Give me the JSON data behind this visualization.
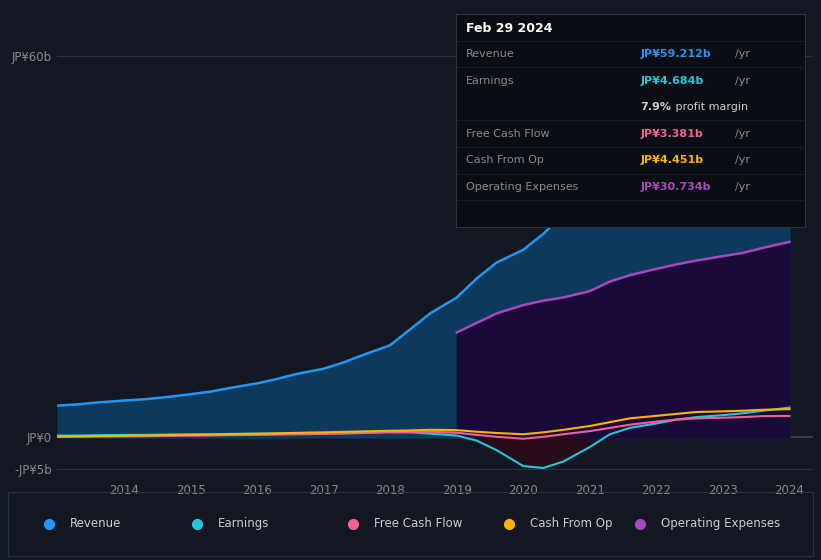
{
  "background_color": "#131722",
  "plot_bg_color": "#131722",
  "years": [
    2013.0,
    2013.3,
    2013.6,
    2014.0,
    2014.3,
    2014.6,
    2015.0,
    2015.3,
    2015.6,
    2016.0,
    2016.3,
    2016.6,
    2017.0,
    2017.3,
    2017.6,
    2018.0,
    2018.3,
    2018.6,
    2019.0,
    2019.3,
    2019.6,
    2020.0,
    2020.3,
    2020.6,
    2021.0,
    2021.3,
    2021.6,
    2022.0,
    2022.3,
    2022.6,
    2023.0,
    2023.3,
    2023.6,
    2024.0
  ],
  "revenue": [
    5.0,
    5.2,
    5.5,
    5.8,
    6.0,
    6.3,
    6.8,
    7.2,
    7.8,
    8.5,
    9.2,
    10.0,
    10.8,
    11.8,
    13.0,
    14.5,
    17.0,
    19.5,
    22.0,
    25.0,
    27.5,
    29.5,
    32.0,
    35.0,
    38.0,
    41.0,
    44.5,
    46.5,
    49.0,
    51.5,
    53.5,
    55.5,
    57.5,
    59.212
  ],
  "earnings": [
    0.3,
    0.3,
    0.35,
    0.4,
    0.4,
    0.45,
    0.5,
    0.5,
    0.55,
    0.6,
    0.6,
    0.65,
    0.7,
    0.75,
    0.8,
    0.85,
    0.8,
    0.6,
    0.3,
    -0.5,
    -2.0,
    -4.5,
    -4.8,
    -3.8,
    -1.5,
    0.5,
    1.5,
    2.2,
    2.8,
    3.2,
    3.5,
    3.8,
    4.2,
    4.684
  ],
  "free_cash_flow": [
    0.1,
    0.12,
    0.15,
    0.18,
    0.2,
    0.25,
    0.28,
    0.32,
    0.36,
    0.4,
    0.45,
    0.5,
    0.55,
    0.6,
    0.7,
    0.8,
    0.85,
    0.9,
    0.75,
    0.4,
    0.1,
    -0.2,
    0.1,
    0.5,
    1.0,
    1.5,
    2.0,
    2.5,
    2.8,
    3.0,
    3.1,
    3.2,
    3.35,
    3.381
  ],
  "cash_from_op": [
    0.15,
    0.18,
    0.22,
    0.26,
    0.3,
    0.35,
    0.4,
    0.45,
    0.52,
    0.58,
    0.65,
    0.72,
    0.8,
    0.88,
    0.95,
    1.05,
    1.1,
    1.2,
    1.15,
    0.9,
    0.7,
    0.5,
    0.8,
    1.2,
    1.8,
    2.4,
    3.0,
    3.4,
    3.7,
    4.0,
    4.1,
    4.2,
    4.35,
    4.451
  ],
  "op_exp_years": [
    2019.0,
    2019.3,
    2019.6,
    2020.0,
    2020.3,
    2020.6,
    2021.0,
    2021.3,
    2021.6,
    2022.0,
    2022.3,
    2022.6,
    2023.0,
    2023.3,
    2023.6,
    2024.0
  ],
  "operating_expenses": [
    16.5,
    18.0,
    19.5,
    20.8,
    21.5,
    22.0,
    23.0,
    24.5,
    25.5,
    26.5,
    27.2,
    27.8,
    28.5,
    29.0,
    29.8,
    30.734
  ],
  "revenue_color": "#2196f3",
  "earnings_color": "#26c6da",
  "fcf_color": "#f06292",
  "cashop_color": "#ffb300",
  "opex_color": "#ab47bc",
  "revenue_fill": "#0d3a5c",
  "opex_fill": "#1a0a3a",
  "earnings_neg_fill": "#2a0a1a",
  "ylim": [
    -6.5,
    67
  ],
  "yticks": [
    -5,
    0,
    60
  ],
  "ytick_labels": [
    "-JP¥5b",
    "JP¥0",
    "JP¥60b"
  ],
  "xticks": [
    2014,
    2015,
    2016,
    2017,
    2018,
    2019,
    2020,
    2021,
    2022,
    2023,
    2024
  ],
  "info_box": {
    "date": "Feb 29 2024",
    "rows": [
      {
        "label": "Revenue",
        "value": "JP¥59.212b",
        "unit": "/yr",
        "value_color": "#2196f3",
        "label_color": "#888888",
        "sub": null
      },
      {
        "label": "Earnings",
        "value": "JP¥4.684b",
        "unit": "/yr",
        "value_color": "#26c6da",
        "label_color": "#888888",
        "sub": {
          "text": "7.9%",
          "text_bold": true,
          "rest": " profit margin",
          "color": "#cccccc"
        }
      },
      {
        "label": "Free Cash Flow",
        "value": "JP¥3.381b",
        "unit": "/yr",
        "value_color": "#f06292",
        "label_color": "#888888",
        "sub": null
      },
      {
        "label": "Cash From Op",
        "value": "JP¥4.451b",
        "unit": "/yr",
        "value_color": "#ffb300",
        "label_color": "#888888",
        "sub": null
      },
      {
        "label": "Operating Expenses",
        "value": "JP¥30.734b",
        "unit": "/yr",
        "value_color": "#ab47bc",
        "label_color": "#888888",
        "sub": null
      }
    ]
  },
  "legend": [
    {
      "label": "Revenue",
      "color": "#2196f3"
    },
    {
      "label": "Earnings",
      "color": "#26c6da"
    },
    {
      "label": "Free Cash Flow",
      "color": "#f06292"
    },
    {
      "label": "Cash From Op",
      "color": "#ffb300"
    },
    {
      "label": "Operating Expenses",
      "color": "#ab47bc"
    }
  ]
}
